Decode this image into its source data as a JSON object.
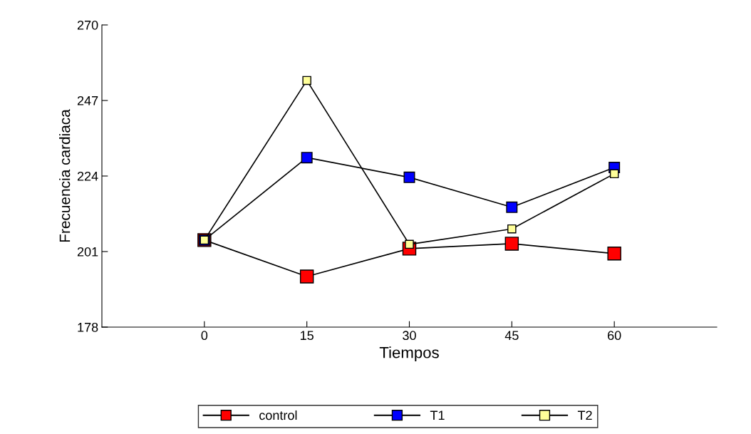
{
  "chart_data": {
    "type": "line",
    "xlabel": "Tiempos",
    "ylabel": "Frecuencia cardiaca",
    "x": [
      0,
      15,
      30,
      45,
      60
    ],
    "series": [
      {
        "name": "control",
        "color": "#ff0000",
        "values": [
          204.5,
          193.4,
          201.9,
          203.4,
          200.4
        ]
      },
      {
        "name": "T1",
        "color": "#0000ff",
        "values": [
          204.5,
          229.6,
          223.6,
          214.5,
          226.6
        ]
      },
      {
        "name": "T2",
        "color": "#ffff99",
        "values": [
          204.5,
          253.1,
          203.2,
          207.9,
          224.7
        ]
      }
    ],
    "xlim": [
      -15,
      75
    ],
    "xticks": [
      0,
      15,
      30,
      45,
      60
    ],
    "ylim": [
      178,
      270
    ],
    "yticks": [
      178,
      201,
      224,
      247,
      270
    ],
    "grid": false,
    "legend": "bottom",
    "marker": "square",
    "line_style": "solid"
  }
}
